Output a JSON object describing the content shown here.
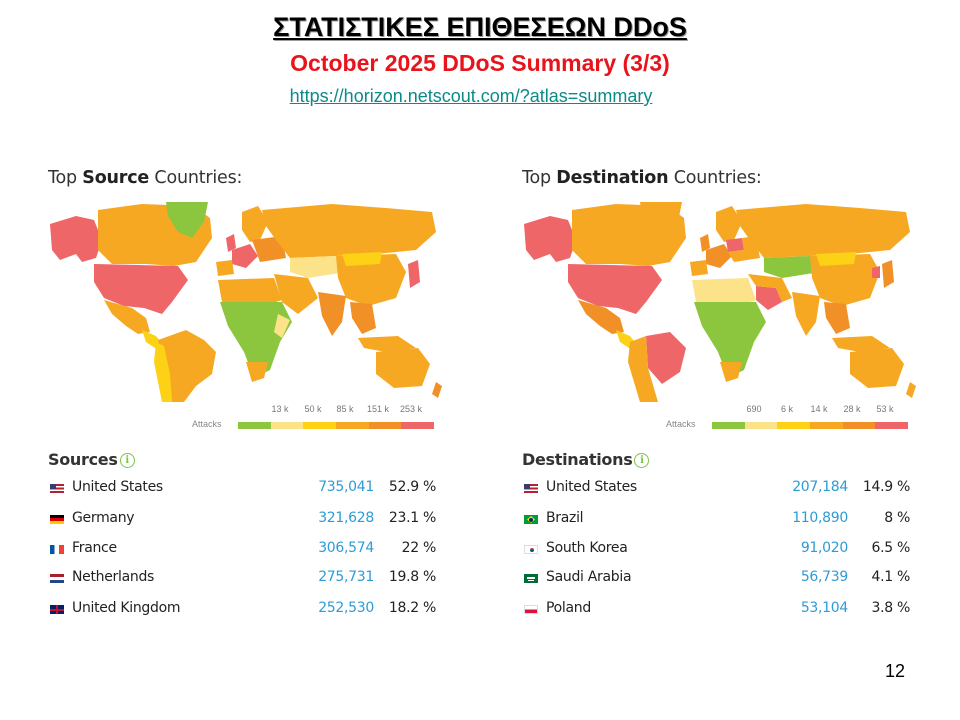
{
  "header": {
    "title": "ΣΤΑΤΙΣΤΙΚΕΣ ΕΠΙΘΕΣΕΩΝ  DDoS",
    "subtitle": "October 2025 DDoS Summary (3/3)",
    "link": "https://horizon.netscout.com/?atlas=summary"
  },
  "page_number": "12",
  "colors": {
    "level1": "#8cc63f",
    "level2": "#fce38a",
    "level3": "#fcd116",
    "level4": "#f7a823",
    "level5": "#f29028",
    "level6": "#ef6668",
    "ocean": "#ffffff",
    "link": "#0b8a88",
    "subtitle": "#e8141b",
    "value": "#2e9bd6"
  },
  "source_panel": {
    "heading_pre": "Top ",
    "heading_bold": "Source",
    "heading_post": " Countries:",
    "legend_label": "Attacks",
    "legend_ticks": [
      "13 k",
      "50 k",
      "85 k",
      "151 k",
      "253 k"
    ],
    "list_title": "Sources",
    "rows": [
      {
        "flag": "us-flag-icon",
        "country": "United States",
        "value": "735,041",
        "pct": "52.9 %"
      },
      {
        "flag": "de-flag-icon",
        "country": "Germany",
        "value": "321,628",
        "pct": "23.1 %"
      },
      {
        "flag": "fr-flag-icon",
        "country": "France",
        "value": "306,574",
        "pct": "22 %"
      },
      {
        "flag": "nl-flag-icon",
        "country": "Netherlands",
        "value": "275,731",
        "pct": "19.8 %"
      },
      {
        "flag": "gb-flag-icon",
        "country": "United Kingdom",
        "value": "252,530",
        "pct": "18.2 %"
      }
    ]
  },
  "destination_panel": {
    "heading_pre": "Top ",
    "heading_bold": "Destination",
    "heading_post": " Countries:",
    "legend_label": "Attacks",
    "legend_ticks": [
      "690",
      "6 k",
      "14 k",
      "28 k",
      "53 k"
    ],
    "list_title": "Destinations",
    "rows": [
      {
        "flag": "us-flag-icon",
        "country": "United States",
        "value": "207,184",
        "pct": "14.9 %"
      },
      {
        "flag": "br-flag-icon",
        "country": "Brazil",
        "value": "110,890",
        "pct": "8 %"
      },
      {
        "flag": "kr-flag-icon",
        "country": "South Korea",
        "value": "91,020",
        "pct": "6.5 %"
      },
      {
        "flag": "sa-flag-icon",
        "country": "Saudi Arabia",
        "value": "56,739",
        "pct": "4.1 %"
      },
      {
        "flag": "pl-flag-icon",
        "country": "Poland",
        "value": "53,104",
        "pct": "3.8 %"
      }
    ]
  }
}
